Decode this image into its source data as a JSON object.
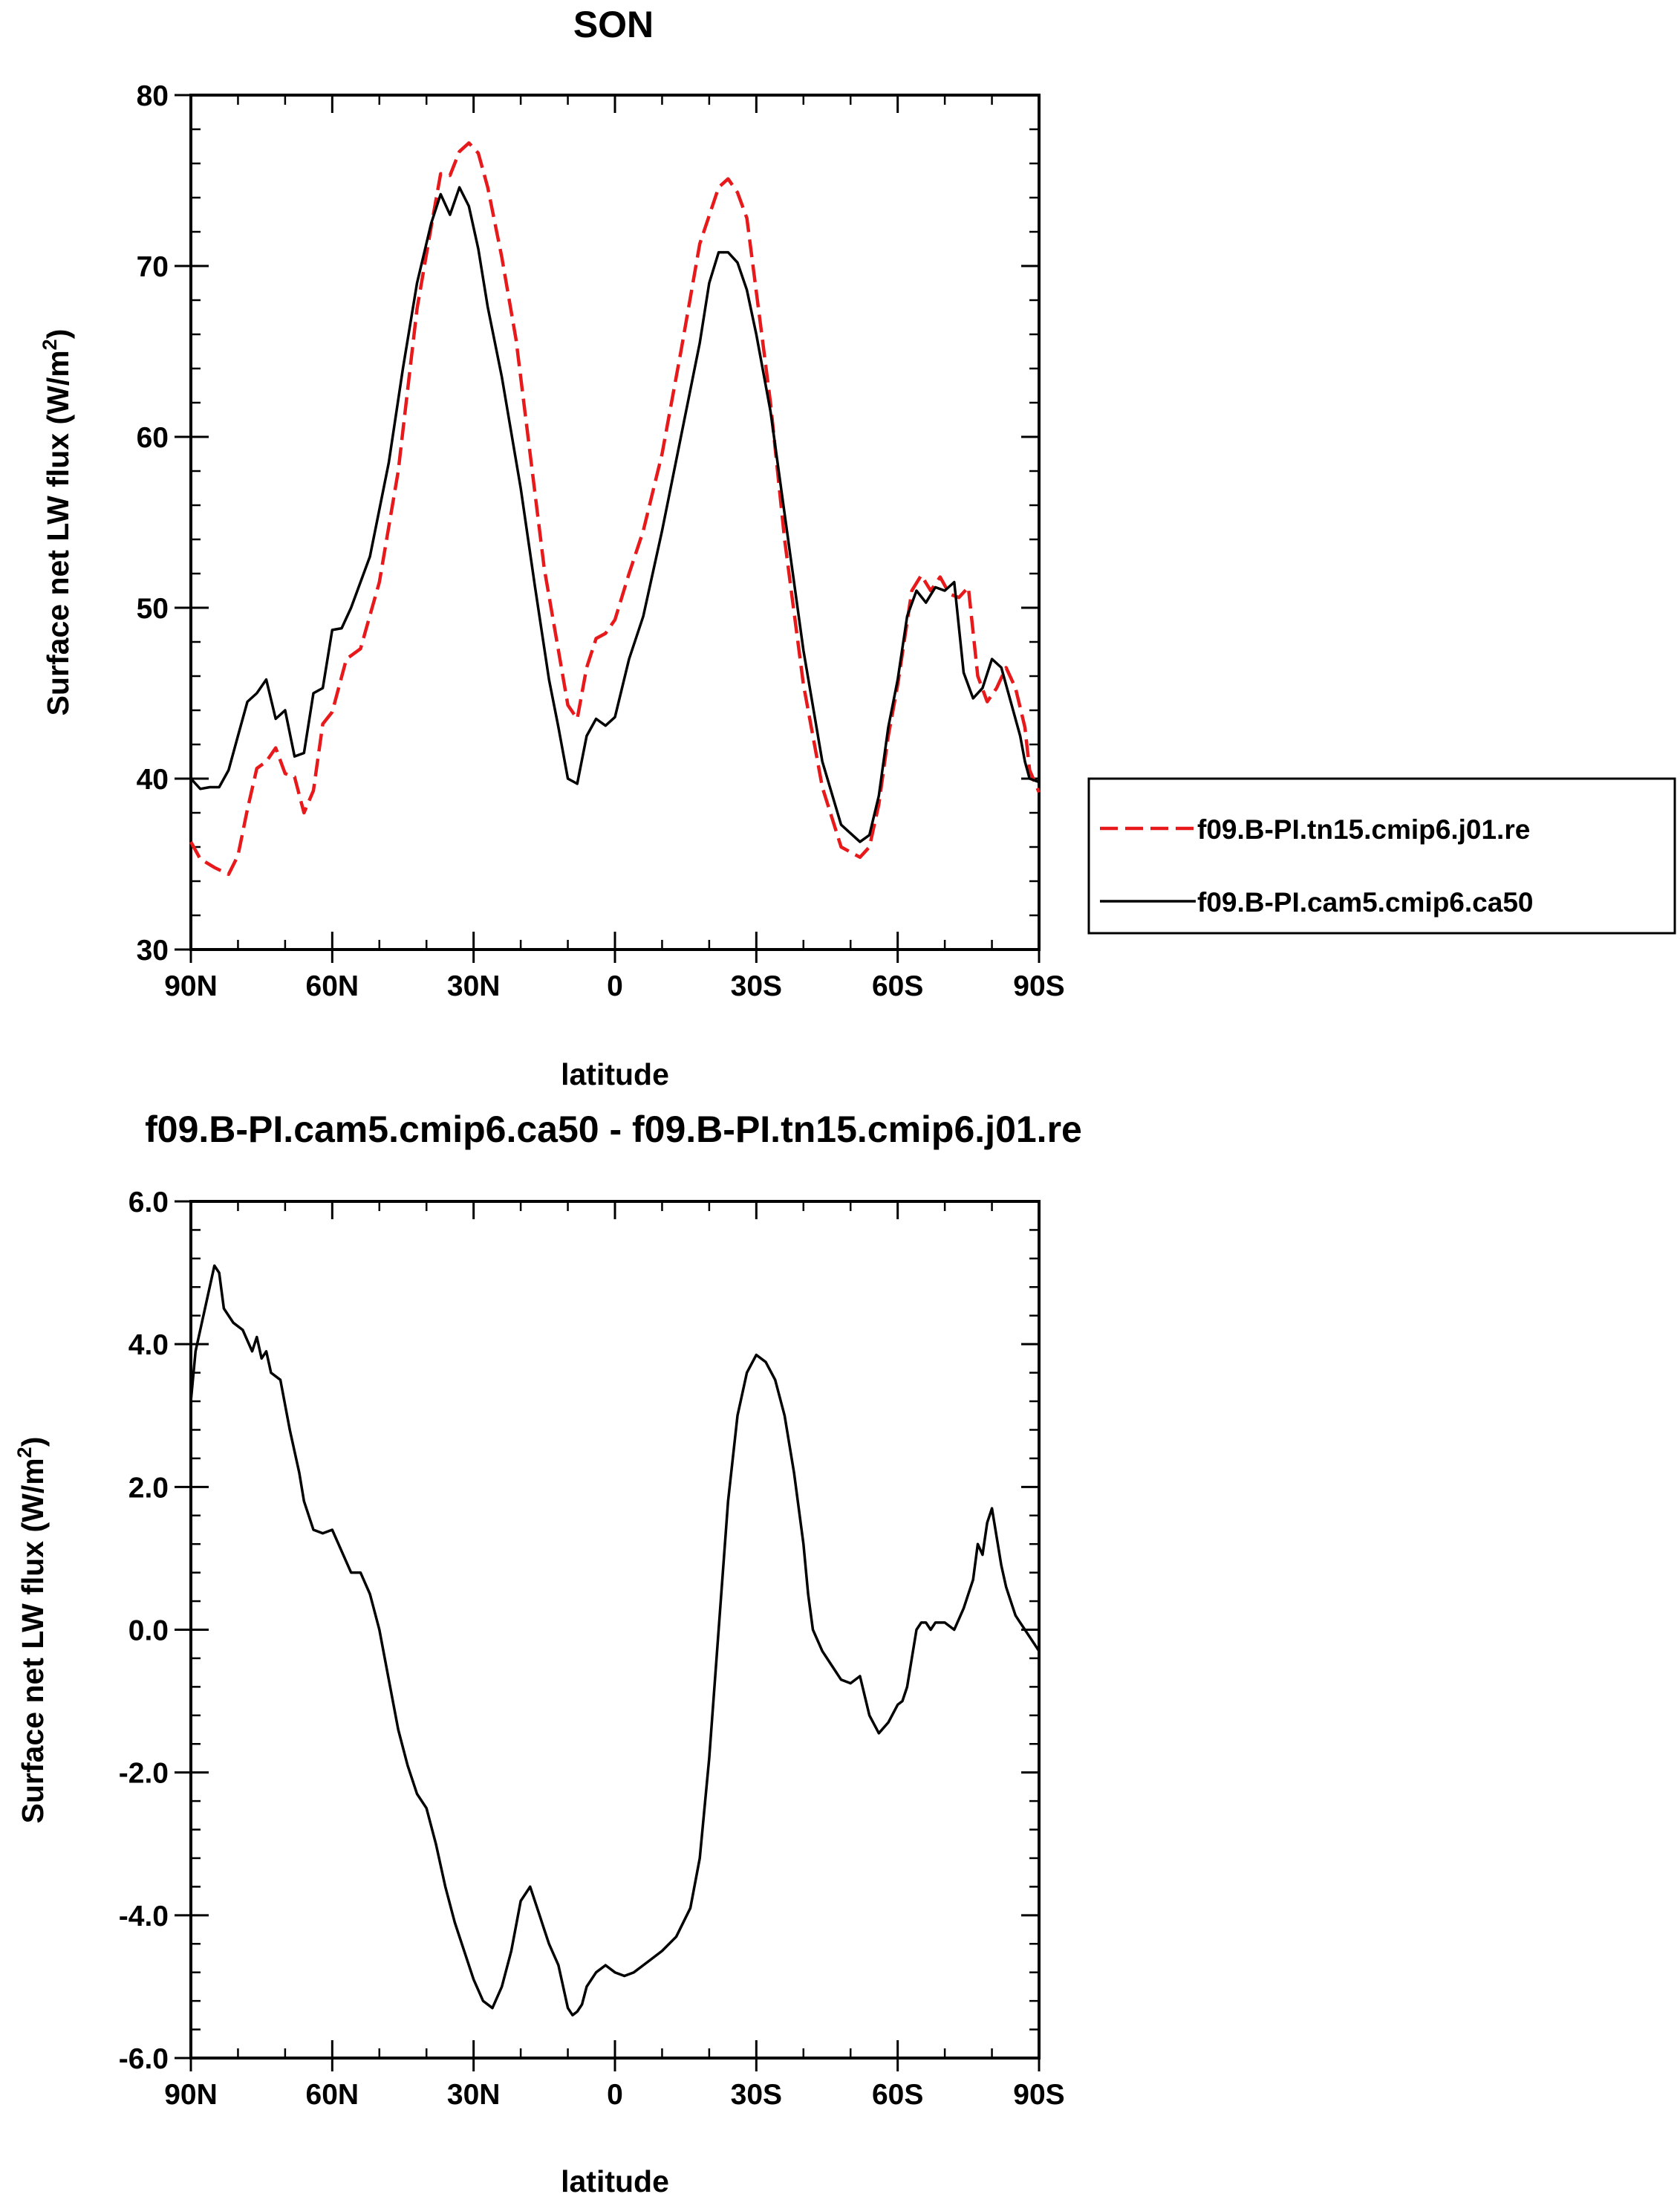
{
  "chart_data": [
    {
      "type": "line",
      "title": "SON",
      "xlabel": "latitude",
      "ylabel": "Surface net LW flux (W/m²)",
      "ylabel_main": "Surface net LW flux (W/m",
      "ylabel_sup": "2",
      "ylabel_tail": ")",
      "xlim": [
        90,
        -90
      ],
      "ylim": [
        30,
        80
      ],
      "x_ticks": [
        90,
        60,
        30,
        0,
        -30,
        -60,
        -90
      ],
      "x_tick_labels": [
        "90N",
        "60N",
        "30N",
        "0",
        "30S",
        "60S",
        "90S"
      ],
      "y_ticks": [
        30,
        40,
        50,
        60,
        70,
        80
      ],
      "y_tick_labels": [
        "30",
        "40",
        "50",
        "60",
        "70",
        "80"
      ],
      "legend_position": "right",
      "series": [
        {
          "name": "f09.B-PI.tn15.cmip6.j01.re",
          "color": "#e8191b",
          "style": "dashed",
          "x": [
            90,
            88,
            85,
            82,
            80,
            78,
            76,
            74,
            72,
            70,
            68,
            66,
            64,
            62,
            60,
            57,
            54,
            50,
            46,
            42,
            39,
            37,
            35,
            33,
            31,
            29,
            27,
            24,
            21,
            18,
            15,
            12,
            10,
            8,
            6,
            4,
            2,
            0,
            -3,
            -6,
            -10,
            -14,
            -18,
            -22,
            -24,
            -26,
            -28,
            -30,
            -33,
            -36,
            -40,
            -44,
            -48,
            -52,
            -54,
            -56,
            -58,
            -60,
            -63,
            -65,
            -67,
            -69,
            -71,
            -73,
            -75,
            -77,
            -79,
            -81,
            -83,
            -85,
            -87,
            -88,
            -90
          ],
          "y": [
            36.3,
            35.3,
            34.8,
            34.4,
            35.5,
            38.2,
            40.6,
            41.0,
            41.8,
            40.3,
            40.1,
            38.0,
            39.3,
            43.2,
            43.9,
            47.0,
            47.6,
            51.5,
            58.0,
            67.5,
            72.3,
            75.4,
            75.3,
            76.7,
            77.2,
            76.6,
            74.6,
            70.5,
            65.7,
            59.0,
            52.3,
            47.5,
            44.3,
            43.5,
            46.5,
            48.2,
            48.5,
            49.3,
            52.0,
            54.5,
            59.0,
            65.0,
            71.3,
            74.6,
            75.1,
            74.3,
            72.8,
            68.5,
            62.0,
            54.0,
            45.5,
            39.5,
            36.0,
            35.4,
            36.0,
            38.5,
            42.5,
            45.5,
            51.0,
            51.9,
            51.0,
            51.8,
            50.8,
            50.6,
            51.2,
            46.0,
            44.5,
            45.3,
            46.5,
            45.3,
            43.0,
            40.5,
            39.2
          ]
        },
        {
          "name": "f09.B-PI.cam5.cmip6.ca50",
          "color": "#000000",
          "style": "solid",
          "x": [
            90,
            88,
            86,
            84,
            82,
            80,
            78,
            76,
            74,
            72,
            70,
            68,
            66,
            64,
            62,
            60,
            58,
            56,
            52,
            48,
            45,
            42,
            39,
            37,
            35,
            33,
            31,
            29,
            27,
            24,
            20,
            17,
            14,
            12,
            10,
            8,
            6,
            4,
            2,
            0,
            -3,
            -6,
            -10,
            -14,
            -18,
            -20,
            -22,
            -24,
            -26,
            -28,
            -30,
            -33,
            -36,
            -40,
            -44,
            -48,
            -52,
            -54,
            -56,
            -58,
            -60,
            -62,
            -64,
            -66,
            -68,
            -70,
            -72,
            -74,
            -76,
            -78,
            -80,
            -82,
            -84,
            -86,
            -87,
            -88,
            -90
          ],
          "y": [
            40.0,
            39.4,
            39.5,
            39.5,
            40.5,
            42.5,
            44.5,
            45.0,
            45.8,
            43.5,
            44.0,
            41.3,
            41.5,
            45.0,
            45.3,
            48.7,
            48.8,
            50.0,
            53.0,
            58.5,
            64.0,
            69.0,
            72.5,
            74.2,
            73.0,
            74.6,
            73.5,
            71.0,
            67.6,
            63.5,
            57.0,
            51.3,
            45.8,
            43.0,
            40.0,
            39.7,
            42.5,
            43.5,
            43.1,
            43.6,
            47.0,
            49.5,
            54.5,
            60.0,
            65.5,
            69.0,
            70.8,
            70.8,
            70.2,
            68.6,
            66.0,
            61.5,
            55.5,
            47.5,
            41.0,
            37.3,
            36.3,
            36.7,
            39.0,
            43.0,
            45.8,
            49.5,
            51.0,
            50.3,
            51.2,
            51.0,
            51.5,
            46.2,
            44.7,
            45.3,
            47.0,
            46.5,
            44.5,
            42.5,
            41.0,
            40.0,
            39.8
          ]
        }
      ]
    },
    {
      "type": "line",
      "title": "f09.B-PI.cam5.cmip6.ca50 - f09.B-PI.tn15.cmip6.j01.re",
      "xlabel": "latitude",
      "ylabel": "Surface net LW flux (W/m²)",
      "ylabel_main": "Surface net LW flux (W/m",
      "ylabel_sup": "2",
      "ylabel_tail": ")",
      "xlim": [
        90,
        -90
      ],
      "ylim": [
        -6,
        6
      ],
      "x_ticks": [
        90,
        60,
        30,
        0,
        -30,
        -60,
        -90
      ],
      "x_tick_labels": [
        "90N",
        "60N",
        "30N",
        "0",
        "30S",
        "60S",
        "90S"
      ],
      "y_ticks": [
        -6,
        -4,
        -2,
        0,
        2,
        4,
        6
      ],
      "y_tick_labels": [
        "-6.0",
        "-4.0",
        "-2.0",
        "0.0",
        "2.0",
        "4.0",
        "6.0"
      ],
      "series": [
        {
          "color": "#000000",
          "style": "solid",
          "x": [
            90,
            89,
            87,
            85,
            84,
            83,
            81,
            79,
            77,
            76,
            75,
            74,
            73,
            71,
            69,
            67,
            66,
            64,
            62,
            60,
            58,
            56,
            54,
            52,
            50,
            48,
            46,
            44,
            42,
            40,
            38,
            36,
            34,
            32,
            30,
            28,
            26,
            24,
            22,
            20,
            18,
            16,
            15,
            14,
            12,
            10,
            9,
            8,
            7,
            6,
            4,
            2,
            0,
            -2,
            -4,
            -6,
            -8,
            -10,
            -13,
            -16,
            -18,
            -20,
            -22,
            -24,
            -26,
            -28,
            -30,
            -32,
            -34,
            -36,
            -38,
            -40,
            -41,
            -42,
            -44,
            -46,
            -48,
            -50,
            -52,
            -54,
            -56,
            -58,
            -60,
            -61,
            -62,
            -63,
            -64,
            -65,
            -66,
            -67,
            -68,
            -70,
            -72,
            -74,
            -75,
            -76,
            -77,
            -78,
            -79,
            -80,
            -81,
            -82,
            -83,
            -84,
            -85,
            -86,
            -87,
            -88,
            -89,
            -90
          ],
          "y": [
            3.2,
            3.9,
            4.5,
            5.1,
            5.0,
            4.5,
            4.3,
            4.2,
            3.9,
            4.1,
            3.8,
            3.9,
            3.6,
            3.5,
            2.8,
            2.2,
            1.8,
            1.4,
            1.35,
            1.4,
            1.1,
            0.8,
            0.8,
            0.5,
            0.0,
            -0.7,
            -1.4,
            -1.9,
            -2.3,
            -2.5,
            -3.0,
            -3.6,
            -4.1,
            -4.5,
            -4.9,
            -5.2,
            -5.3,
            -5.0,
            -4.5,
            -3.8,
            -3.6,
            -4.0,
            -4.2,
            -4.4,
            -4.7,
            -5.3,
            -5.4,
            -5.35,
            -5.25,
            -5.0,
            -4.8,
            -4.7,
            -4.8,
            -4.85,
            -4.8,
            -4.7,
            -4.6,
            -4.5,
            -4.3,
            -3.9,
            -3.2,
            -1.8,
            0.0,
            1.8,
            3.0,
            3.6,
            3.85,
            3.75,
            3.5,
            3.0,
            2.2,
            1.2,
            0.5,
            0.0,
            -0.3,
            -0.5,
            -0.7,
            -0.75,
            -0.65,
            -1.2,
            -1.45,
            -1.3,
            -1.05,
            -1.0,
            -0.8,
            -0.4,
            0.0,
            0.1,
            0.1,
            0.0,
            0.1,
            0.1,
            0.0,
            0.3,
            0.5,
            0.7,
            1.2,
            1.05,
            1.5,
            1.7,
            1.3,
            0.9,
            0.6,
            0.4,
            0.2,
            0.1,
            0.0,
            -0.1,
            -0.2,
            -0.3
          ]
        }
      ]
    }
  ]
}
